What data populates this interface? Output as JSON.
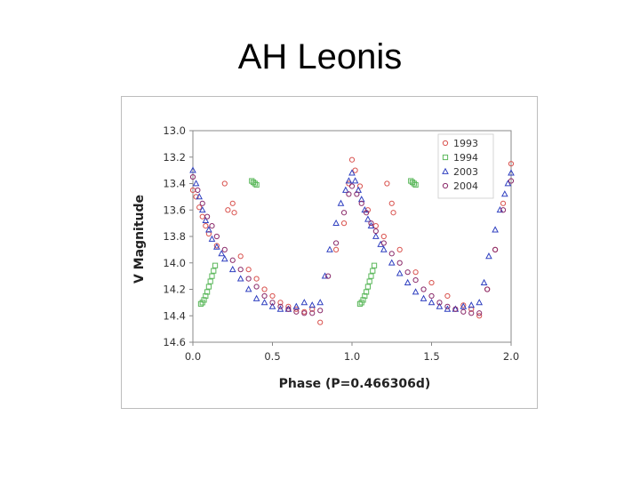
{
  "slide": {
    "title": "AH Leonis"
  },
  "chart_data": {
    "type": "scatter",
    "title": "",
    "xlabel": "Phase (P=0.466306d)",
    "ylabel": "V Magnitude",
    "xlim": [
      0.0,
      2.0
    ],
    "ylim": [
      13.0,
      14.6
    ],
    "y_inverted": true,
    "x_ticks": [
      "0.0",
      "0.5",
      "1.0",
      "1.5",
      "2.0"
    ],
    "y_ticks": [
      "13.0",
      "13.2",
      "13.4",
      "13.6",
      "13.8",
      "14.0",
      "14.2",
      "14.4",
      "14.6"
    ],
    "grid": false,
    "legend_position": "top-right",
    "series": [
      {
        "name": "1993",
        "marker": "circle",
        "color": "#d9534f",
        "x": [
          0.0,
          0.02,
          0.04,
          0.06,
          0.08,
          0.1,
          0.15,
          0.2,
          0.22,
          0.25,
          0.26,
          0.3,
          0.35,
          0.4,
          0.45,
          0.5,
          0.55,
          0.6,
          0.65,
          0.7,
          0.75,
          0.8,
          0.9,
          0.95,
          0.98,
          1.0,
          1.02,
          1.05,
          1.1,
          1.15,
          1.2,
          1.22,
          1.25,
          1.26,
          1.3,
          1.4,
          1.5,
          1.6,
          1.7,
          1.75,
          1.8,
          1.85,
          1.9,
          1.95,
          2.0
        ],
        "y": [
          13.45,
          13.5,
          13.58,
          13.65,
          13.72,
          13.78,
          13.87,
          13.4,
          13.6,
          13.55,
          13.62,
          13.95,
          14.05,
          14.12,
          14.2,
          14.25,
          14.3,
          14.33,
          14.35,
          14.37,
          14.35,
          14.45,
          13.9,
          13.7,
          13.4,
          13.22,
          13.3,
          13.42,
          13.6,
          13.72,
          13.8,
          13.4,
          13.55,
          13.62,
          13.9,
          14.07,
          14.15,
          14.25,
          14.32,
          14.35,
          14.4,
          14.2,
          13.9,
          13.55,
          13.25
        ]
      },
      {
        "name": "1994",
        "marker": "square",
        "color": "#5cb85c",
        "x": [
          0.05,
          0.06,
          0.07,
          0.08,
          0.09,
          0.1,
          0.11,
          0.12,
          0.13,
          0.14,
          0.37,
          0.38,
          0.39,
          0.4,
          1.05,
          1.06,
          1.07,
          1.08,
          1.09,
          1.1,
          1.11,
          1.12,
          1.13,
          1.14,
          1.37,
          1.38,
          1.39,
          1.4
        ],
        "y": [
          14.31,
          14.3,
          14.28,
          14.25,
          14.22,
          14.18,
          14.14,
          14.1,
          14.06,
          14.02,
          13.38,
          13.39,
          13.4,
          13.41,
          14.31,
          14.3,
          14.28,
          14.25,
          14.22,
          14.18,
          14.14,
          14.1,
          14.06,
          14.02,
          13.38,
          13.39,
          13.4,
          13.41
        ]
      },
      {
        "name": "2003",
        "marker": "triangle",
        "color": "#3040c0",
        "x": [
          0.0,
          0.02,
          0.04,
          0.06,
          0.08,
          0.1,
          0.12,
          0.15,
          0.18,
          0.2,
          0.25,
          0.3,
          0.35,
          0.4,
          0.45,
          0.5,
          0.55,
          0.6,
          0.65,
          0.7,
          0.75,
          0.8,
          0.83,
          0.86,
          0.9,
          0.93,
          0.96,
          0.98,
          1.0,
          1.02,
          1.04,
          1.06,
          1.08,
          1.1,
          1.12,
          1.15,
          1.18,
          1.2,
          1.25,
          1.3,
          1.35,
          1.4,
          1.45,
          1.5,
          1.55,
          1.6,
          1.65,
          1.7,
          1.75,
          1.8,
          1.83,
          1.86,
          1.9,
          1.93,
          1.96,
          1.98,
          2.0
        ],
        "y": [
          13.3,
          13.4,
          13.5,
          13.6,
          13.68,
          13.75,
          13.82,
          13.88,
          13.93,
          13.97,
          14.05,
          14.12,
          14.2,
          14.27,
          14.3,
          14.33,
          14.35,
          14.35,
          14.33,
          14.3,
          14.32,
          14.3,
          14.1,
          13.9,
          13.7,
          13.55,
          13.45,
          13.38,
          13.32,
          13.38,
          13.45,
          13.52,
          13.6,
          13.67,
          13.72,
          13.8,
          13.86,
          13.9,
          14.0,
          14.08,
          14.15,
          14.22,
          14.27,
          14.3,
          14.33,
          14.35,
          14.35,
          14.33,
          14.32,
          14.3,
          14.15,
          13.95,
          13.75,
          13.6,
          13.48,
          13.4,
          13.32
        ]
      },
      {
        "name": "2004",
        "marker": "circle",
        "color": "#8a2a6a",
        "x": [
          0.0,
          0.03,
          0.06,
          0.09,
          0.12,
          0.15,
          0.2,
          0.25,
          0.3,
          0.35,
          0.4,
          0.45,
          0.5,
          0.55,
          0.6,
          0.65,
          0.7,
          0.75,
          0.8,
          0.85,
          0.9,
          0.95,
          0.98,
          1.0,
          1.03,
          1.06,
          1.09,
          1.12,
          1.15,
          1.2,
          1.25,
          1.3,
          1.35,
          1.4,
          1.45,
          1.5,
          1.55,
          1.6,
          1.65,
          1.7,
          1.75,
          1.8,
          1.85,
          1.9,
          1.95,
          2.0
        ],
        "y": [
          13.35,
          13.45,
          13.55,
          13.65,
          13.72,
          13.8,
          13.9,
          13.98,
          14.05,
          14.12,
          14.18,
          14.25,
          14.3,
          14.33,
          14.35,
          14.37,
          14.38,
          14.38,
          14.36,
          14.1,
          13.85,
          13.62,
          13.48,
          13.42,
          13.48,
          13.55,
          13.62,
          13.7,
          13.76,
          13.85,
          13.93,
          14.0,
          14.07,
          14.13,
          14.2,
          14.25,
          14.3,
          14.33,
          14.35,
          14.37,
          14.38,
          14.38,
          14.2,
          13.9,
          13.6,
          13.38
        ]
      }
    ]
  }
}
